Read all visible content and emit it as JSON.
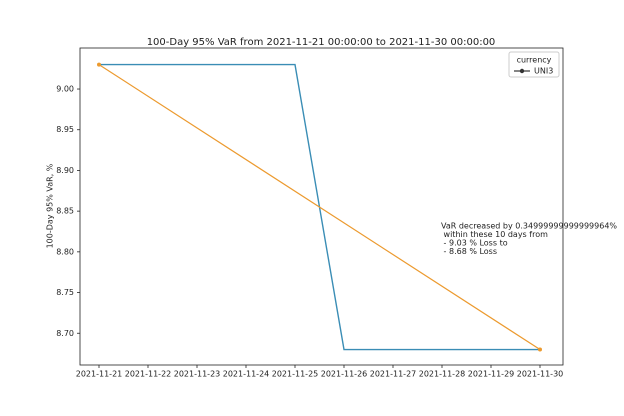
{
  "chart_data": {
    "type": "line",
    "title": "100-Day 95% VaR from 2021-11-21 00:00:00 to 2021-11-30 00:00:00",
    "y_label": "100-Day 95% VaR, %",
    "categories": [
      "2021-11-21",
      "2021-11-22",
      "2021-11-23",
      "2021-11-24",
      "2021-11-25",
      "2021-11-26",
      "2021-11-27",
      "2021-11-28",
      "2021-11-29",
      "2021-11-30"
    ],
    "series": [
      {
        "name": "UNI3",
        "color": "#3a8db5",
        "values": [
          9.03,
          9.03,
          9.03,
          9.03,
          9.03,
          8.68,
          8.68,
          8.68,
          8.68,
          8.68
        ]
      }
    ],
    "trend": {
      "x": [
        "2021-11-21",
        "2021-11-30"
      ],
      "values": [
        9.03,
        8.68
      ],
      "color": "#ec9a2e"
    },
    "legend_title": "currency",
    "legend_position": "upper right",
    "annotation": [
      "VaR decreased by 0.34999999999999964%",
      " within these 10 days from",
      " - 9.03 % Loss to",
      " - 8.68 % Loss"
    ],
    "ylim": [
      8.661,
      9.0504
    ],
    "yticks": [
      {
        "value": 8.7,
        "label": "8.70"
      },
      8.75,
      {
        "value": 8.8,
        "label": "8.80"
      },
      8.85,
      {
        "value": 8.9,
        "label": "8.90"
      },
      8.95,
      {
        "value": 9.0,
        "label": "9.00"
      }
    ]
  }
}
